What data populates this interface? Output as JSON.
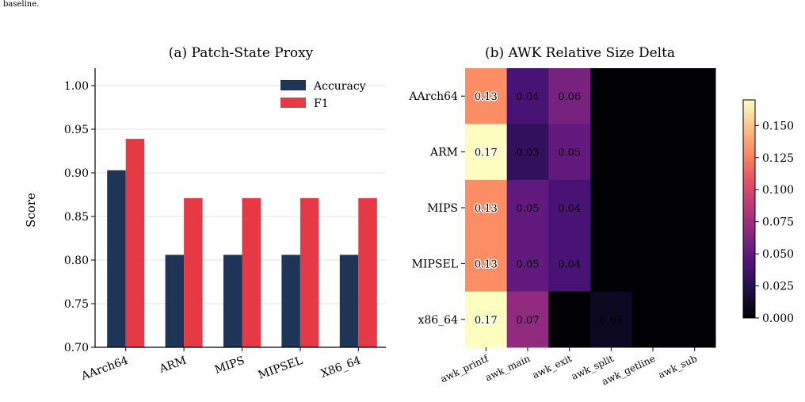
{
  "caption_fragment": "baseline.",
  "chart_data": [
    {
      "type": "bar",
      "title": "(a) Patch-State Proxy",
      "ylabel": "Score",
      "xlabel": "",
      "categories": [
        "AArch64",
        "ARM",
        "MIPS",
        "MIPSEL",
        "X86_64"
      ],
      "series": [
        {
          "name": "Accuracy",
          "color": "#1f3558",
          "values": [
            0.903,
            0.806,
            0.806,
            0.806,
            0.806
          ]
        },
        {
          "name": "F1",
          "color": "#e63946",
          "values": [
            0.939,
            0.871,
            0.871,
            0.871,
            0.871
          ]
        }
      ],
      "ylim": [
        0.7,
        1.02
      ],
      "yticks": [
        "0.70",
        "0.75",
        "0.80",
        "0.85",
        "0.90",
        "0.95",
        "1.00"
      ],
      "grid": true,
      "legend": "top-right"
    },
    {
      "type": "heatmap",
      "title": "(b) AWK Relative Size Delta",
      "rows": [
        "AArch64",
        "ARM",
        "MIPS",
        "MIPSEL",
        "x86_64"
      ],
      "columns": [
        "awk_printf",
        "awk_main",
        "awk_exit",
        "awk_split",
        "awk_getline",
        "awk_sub"
      ],
      "values": [
        [
          0.13,
          0.04,
          0.06,
          0.0,
          0.0,
          0.0
        ],
        [
          0.17,
          0.03,
          0.05,
          0.0,
          0.0,
          0.0
        ],
        [
          0.13,
          0.05,
          0.04,
          0.0,
          0.0,
          0.0
        ],
        [
          0.13,
          0.05,
          0.04,
          0.0,
          0.0,
          0.0
        ],
        [
          0.17,
          0.07,
          0.0,
          0.01,
          0.0,
          0.0
        ]
      ],
      "colormap": "magma",
      "colorbar": {
        "min": 0.0,
        "max": 0.17,
        "ticks": [
          "0.000",
          "0.025",
          "0.050",
          "0.075",
          "0.100",
          "0.125",
          "0.150"
        ]
      }
    }
  ]
}
